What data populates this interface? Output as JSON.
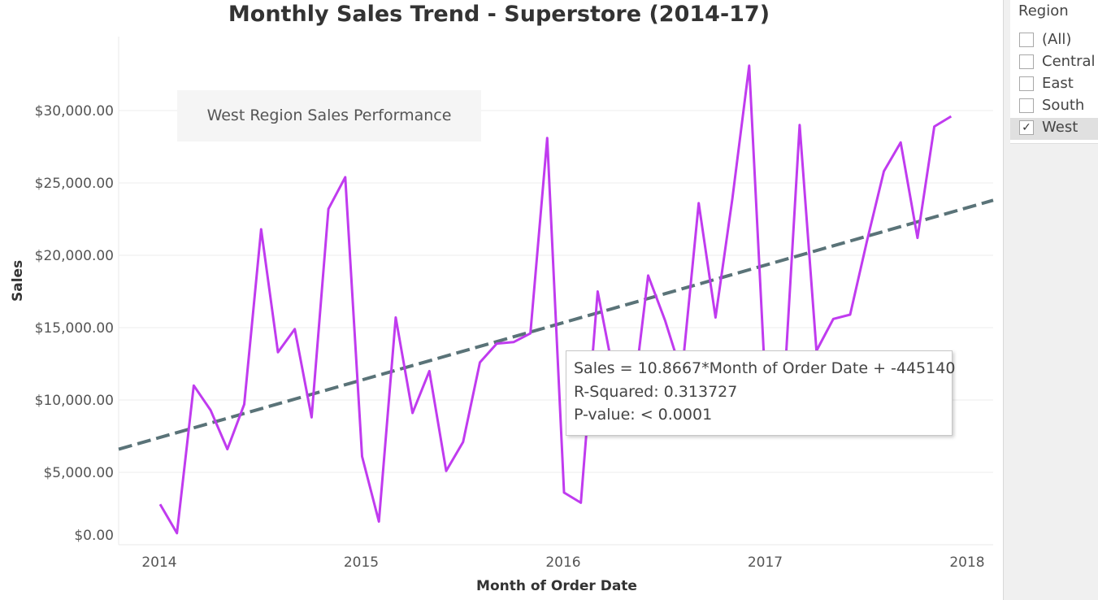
{
  "chart_data": {
    "type": "line",
    "title": "Monthly Sales Trend - Superstore (2014-17)",
    "annotation": "West Region Sales Performance",
    "xlabel": "Month of Order Date",
    "ylabel": "Sales",
    "x_ticks": [
      "2014",
      "2015",
      "2016",
      "2017",
      "2018"
    ],
    "y_ticks": [
      "$0.00",
      "$5,000.00",
      "$10,000.00",
      "$15,000.00",
      "$20,000.00",
      "$25,000.00",
      "$30,000.00"
    ],
    "ylim": [
      0,
      33000
    ],
    "grid": true,
    "series": [
      {
        "color": "#c03bef",
        "x": [
          "2014-01",
          "2014-02",
          "2014-03",
          "2014-04",
          "2014-05",
          "2014-06",
          "2014-07",
          "2014-08",
          "2014-09",
          "2014-10",
          "2014-11",
          "2014-12",
          "2015-01",
          "2015-02",
          "2015-03",
          "2015-04",
          "2015-05",
          "2015-06",
          "2015-07",
          "2015-08",
          "2015-09",
          "2015-10",
          "2015-11",
          "2015-12",
          "2016-01",
          "2016-02",
          "2016-03",
          "2016-04",
          "2016-05",
          "2016-06",
          "2016-07",
          "2016-08",
          "2016-09",
          "2016-10",
          "2016-11",
          "2016-12",
          "2017-01",
          "2017-02",
          "2017-03",
          "2017-04",
          "2017-05",
          "2017-06",
          "2017-07",
          "2017-08",
          "2017-09",
          "2017-10",
          "2017-11",
          "2017-12"
        ],
        "values": [
          2800,
          800,
          11000,
          9300,
          6600,
          9700,
          21800,
          13300,
          14900,
          8800,
          23200,
          25400,
          6100,
          1600,
          15700,
          9100,
          12000,
          5100,
          7100,
          12600,
          13900,
          14000,
          14600,
          28100,
          3600,
          2900,
          17500,
          11500,
          9000,
          18600,
          15500,
          11800,
          23600,
          15700,
          23900,
          33100,
          10200,
          9300,
          29000,
          13400,
          15600,
          15900,
          21000,
          25800,
          27800,
          21200,
          28900,
          29600
        ]
      }
    ],
    "trend_line": {
      "color": "#5a7378",
      "style": "dashed",
      "equation": "Sales = 10.8667*Month of Order Date + -445140",
      "r_squared": "R-Squared: 0.313727",
      "p_value": "P-value: < 0.0001",
      "start": 6600,
      "end": 23800
    }
  },
  "filter": {
    "title": "Region",
    "items": [
      {
        "label": "(All)",
        "checked": false
      },
      {
        "label": "Central",
        "checked": false
      },
      {
        "label": "East",
        "checked": false
      },
      {
        "label": "South",
        "checked": false
      },
      {
        "label": "West",
        "checked": true
      }
    ]
  }
}
